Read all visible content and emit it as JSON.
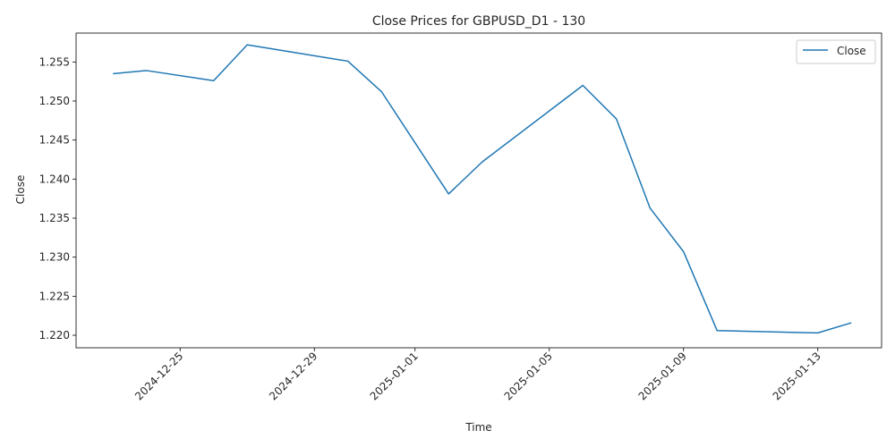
{
  "chart_data": {
    "type": "line",
    "title": "Close Prices for GBPUSD_D1 - 130",
    "xlabel": "Time",
    "ylabel": "Close",
    "grid": false,
    "legend_position": "top-right",
    "line_color": "#1f77b4",
    "x_ticks": [
      "2024-12-25",
      "2024-12-29",
      "2025-01-01",
      "2025-01-05",
      "2025-01-09",
      "2025-01-13"
    ],
    "y_ticks": [
      "1.220",
      "1.225",
      "1.230",
      "1.235",
      "1.240",
      "1.245",
      "1.250",
      "1.255"
    ],
    "ylim": [
      1.2184,
      1.2587
    ],
    "xlim": [
      "2024-12-21T21:36",
      "2025-01-14T21:36"
    ],
    "series": [
      {
        "name": "Close",
        "x": [
          "2024-12-23",
          "2024-12-24",
          "2024-12-26",
          "2024-12-27",
          "2024-12-30",
          "2024-12-31",
          "2025-01-02",
          "2025-01-03",
          "2025-01-06",
          "2025-01-07",
          "2025-01-08",
          "2025-01-09",
          "2025-01-10",
          "2025-01-13",
          "2025-01-14"
        ],
        "values": [
          1.2535,
          1.2539,
          1.2526,
          1.2572,
          1.2551,
          1.2512,
          1.2381,
          1.2422,
          1.252,
          1.2477,
          1.2363,
          1.2307,
          1.2206,
          1.2203,
          1.2216
        ]
      }
    ]
  }
}
